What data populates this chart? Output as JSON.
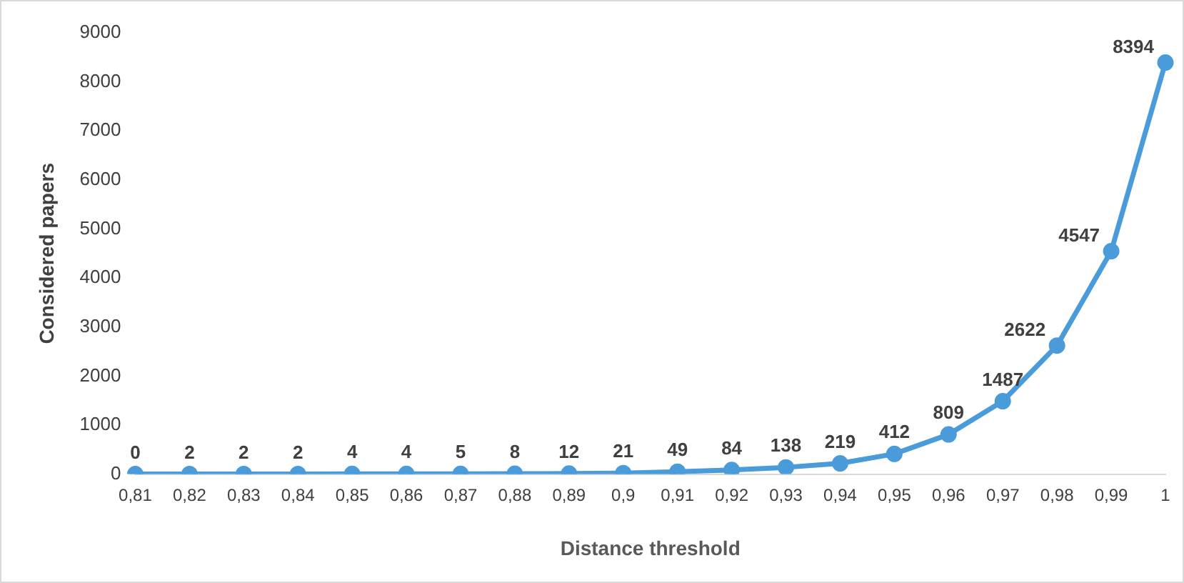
{
  "chart_data": {
    "type": "line",
    "xlabel": "Distance threshold",
    "ylabel": "Considered papers",
    "categories": [
      "0,81",
      "0,82",
      "0,83",
      "0,84",
      "0,85",
      "0,86",
      "0,87",
      "0,88",
      "0,89",
      "0,9",
      "0,91",
      "0,92",
      "0,93",
      "0,94",
      "0,95",
      "0,96",
      "0,97",
      "0,98",
      "0,99",
      "1"
    ],
    "series": [
      {
        "color": "#4a9bd9",
        "values": [
          0,
          2,
          2,
          2,
          4,
          4,
          5,
          8,
          12,
          21,
          49,
          84,
          138,
          219,
          412,
          809,
          1487,
          2622,
          4547,
          8394
        ]
      }
    ],
    "ylim": [
      0,
      9000
    ],
    "yticks": [
      0,
      1000,
      2000,
      3000,
      4000,
      5000,
      6000,
      7000,
      8000,
      9000
    ],
    "grid": false,
    "legend": false,
    "marker": "circle",
    "line_style": "solid",
    "data_labels": true
  }
}
